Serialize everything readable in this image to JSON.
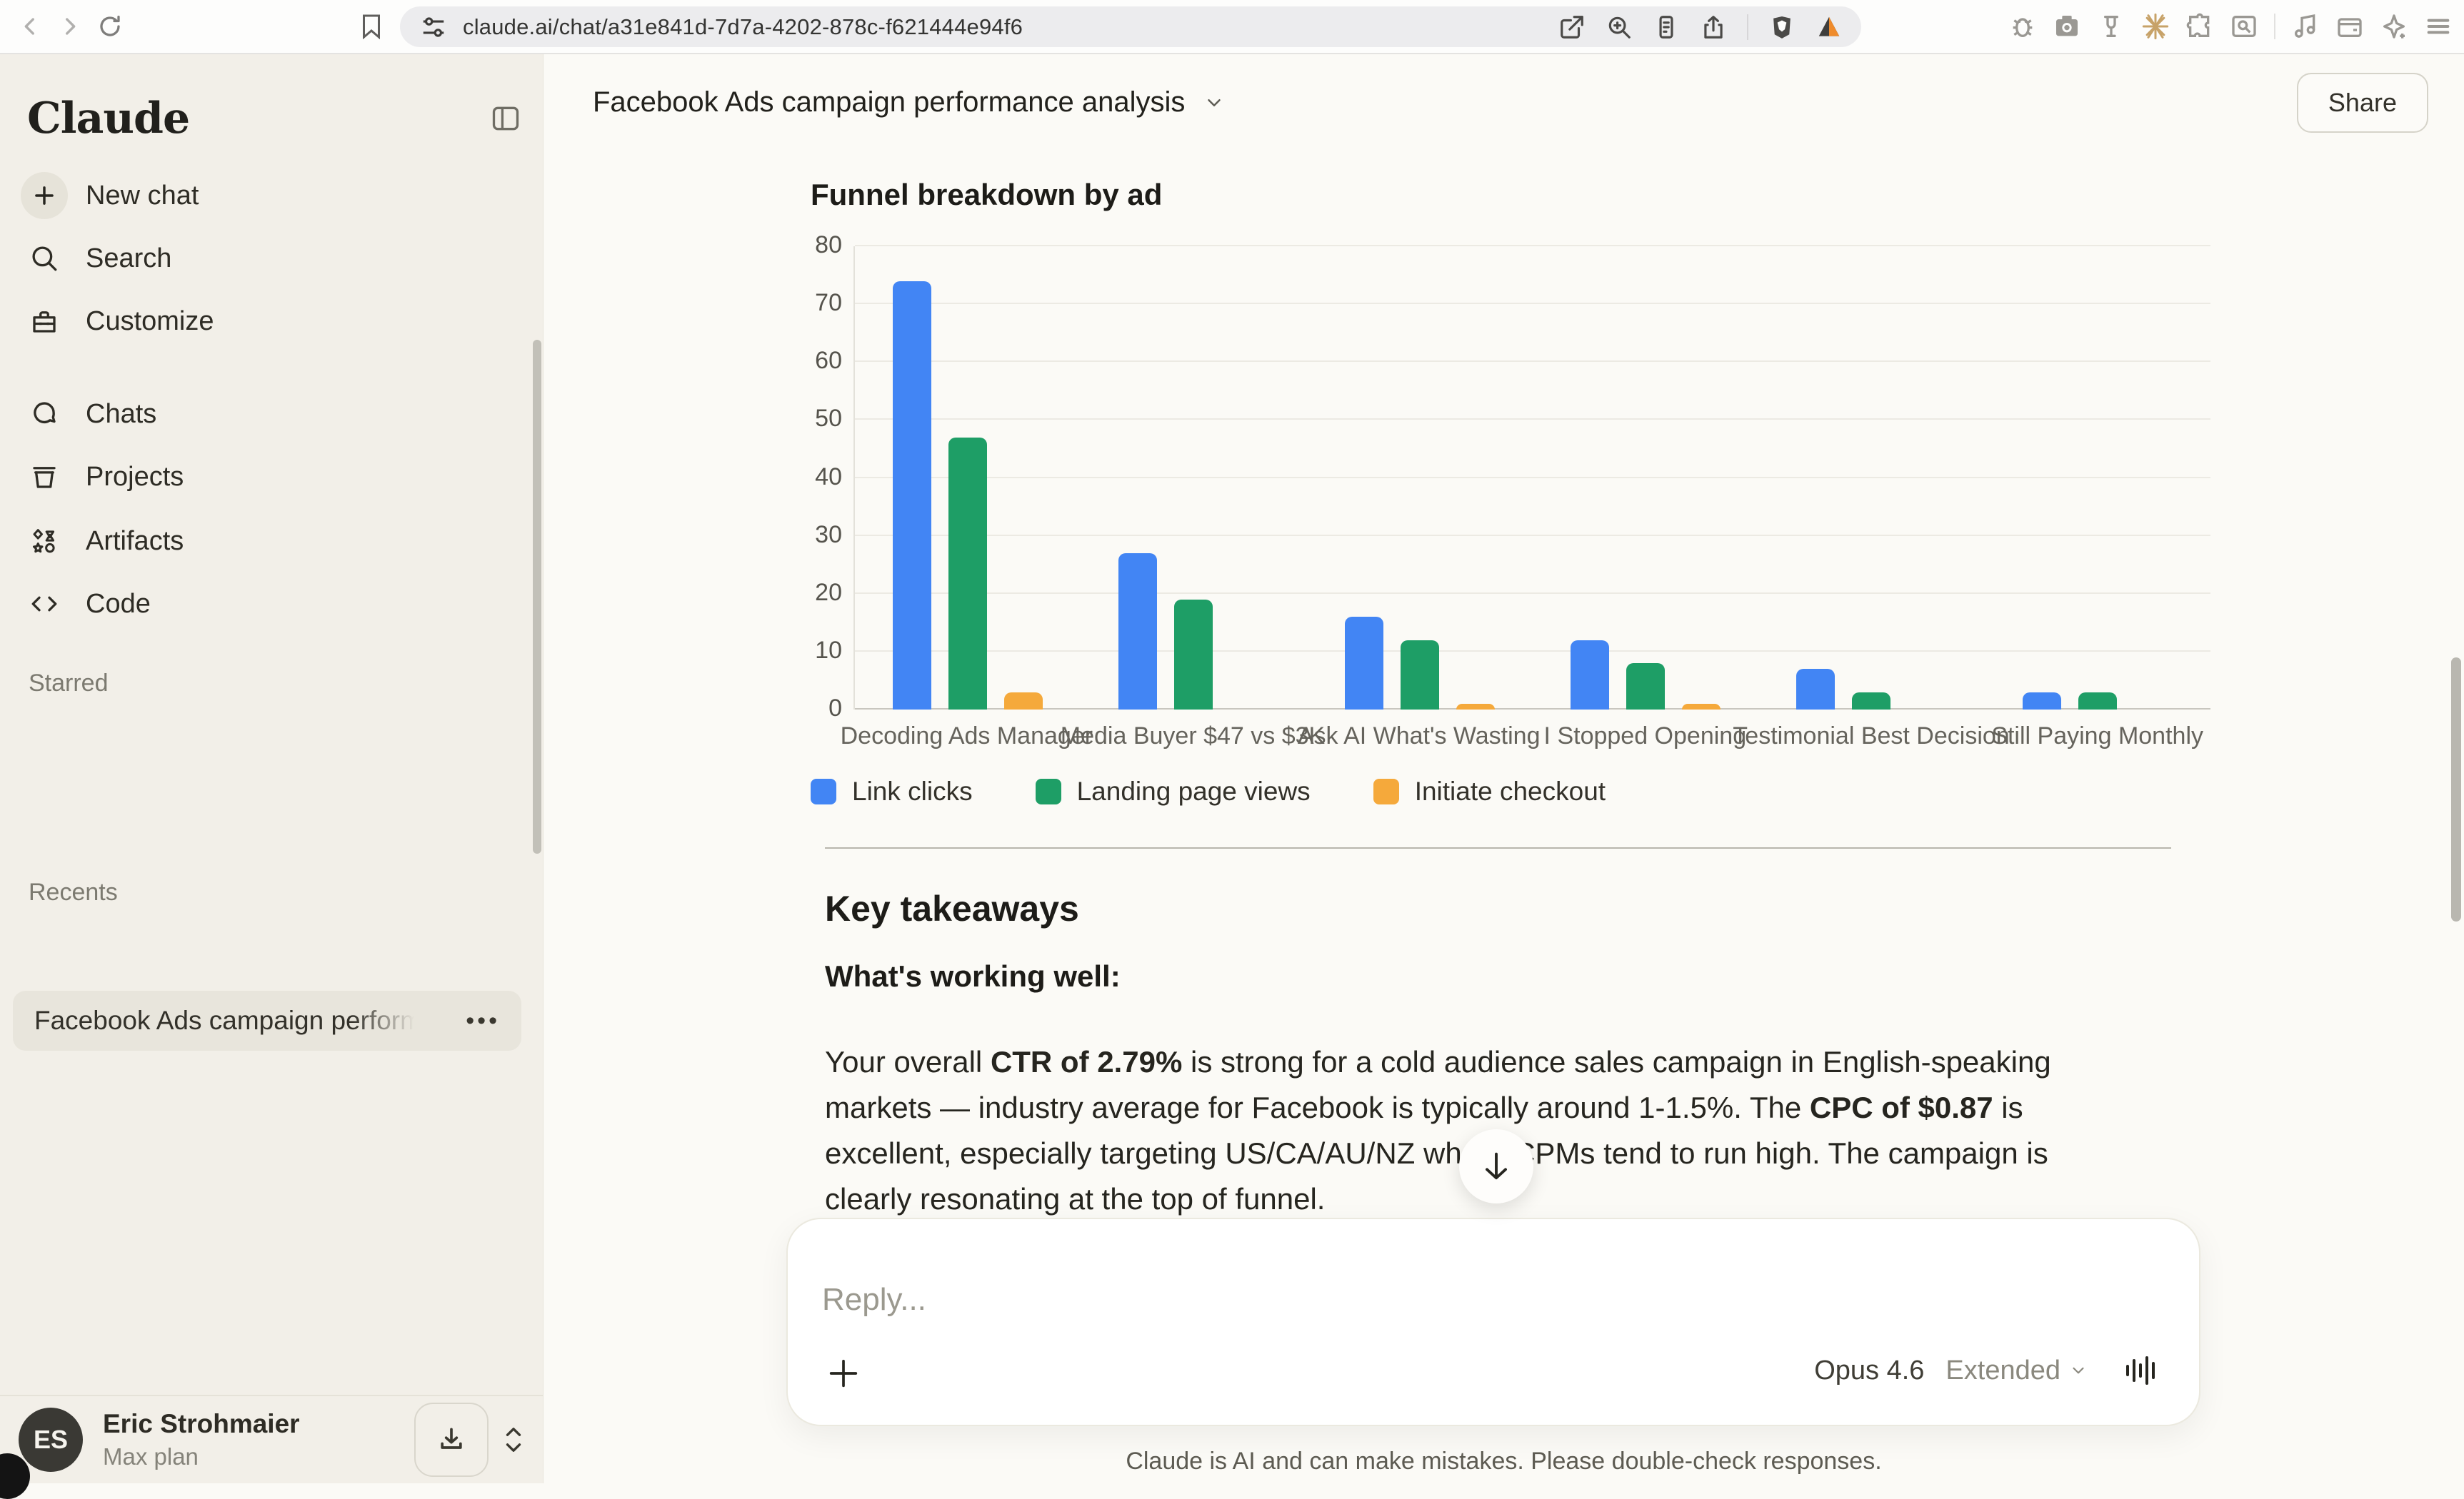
{
  "browser": {
    "url": "claude.ai/chat/a31e841d-7d7a-4202-878c-f621444e94f6",
    "nav_icons": [
      "back-arrow",
      "forward-arrow",
      "reload"
    ],
    "bookmark_icon": "bookmark-flag",
    "url_pill_icons": [
      "site-settings-sliders",
      "open-in-new",
      "zoom-in",
      "reader-mode",
      "share-upload",
      "brave-shield",
      "alert-triangle"
    ],
    "extension_icons": [
      "bug",
      "camera",
      "clamp",
      "burst",
      "puzzle",
      "screen-capture"
    ],
    "right_icons": [
      "music-note",
      "wallet",
      "sparkle",
      "menu"
    ]
  },
  "sidebar": {
    "logo": "Claude",
    "items": [
      {
        "label": "New chat",
        "icon": "plus-icon"
      },
      {
        "label": "Search",
        "icon": "search-icon"
      },
      {
        "label": "Customize",
        "icon": "toolbox-icon"
      },
      {
        "label": "Chats",
        "icon": "chat-bubble-icon"
      },
      {
        "label": "Projects",
        "icon": "box-icon"
      },
      {
        "label": "Artifacts",
        "icon": "shapes-icon"
      },
      {
        "label": "Code",
        "icon": "code-icon"
      }
    ],
    "sections": {
      "starred": "Starred",
      "recents": "Recents"
    },
    "recent_chat": {
      "label": "Facebook Ads campaign perform",
      "menu": "•••"
    },
    "user": {
      "initials": "ES",
      "name": "Eric Strohmaier",
      "plan": "Max plan"
    }
  },
  "header": {
    "title": "Facebook Ads campaign performance analysis",
    "share_label": "Share"
  },
  "chart_data": {
    "type": "bar",
    "title": "Funnel breakdown by ad",
    "categories": [
      "Decoding Ads Manager",
      "Media Buyer $47 vs $3K",
      "Ask AI What's Wasting",
      "I Stopped Opening",
      "Testimonial Best Decision",
      "Still Paying Monthly"
    ],
    "series": [
      {
        "name": "Link clicks",
        "color": "#4285F4",
        "values": [
          74,
          27,
          16,
          12,
          7,
          3
        ]
      },
      {
        "name": "Landing page views",
        "color": "#1E9E66",
        "values": [
          47,
          19,
          12,
          8,
          3,
          3
        ]
      },
      {
        "name": "Initiate checkout",
        "color": "#F5A93B",
        "values": [
          3,
          0,
          1,
          1,
          0,
          0
        ]
      }
    ],
    "xlabel": "",
    "ylabel": "",
    "ylim": [
      0,
      80
    ],
    "ytick_step": 10,
    "grid": true,
    "legend_position": "bottom"
  },
  "takeaways": {
    "heading": "Key takeaways",
    "subheading": "What's working well:",
    "paragraph": [
      {
        "text": "Your overall ",
        "bold": false
      },
      {
        "text": "CTR of 2.79%",
        "bold": true
      },
      {
        "text": " is strong for a cold audience sales campaign in English-speaking markets — industry average for Facebook is typically around 1-1.5%. The ",
        "bold": false
      },
      {
        "text": "CPC of $0.87",
        "bold": true
      },
      {
        "text": " is excellent, especially targeting US/CA/AU/NZ where CPMs tend to run high. The campaign is clearly resonating at the top of funnel.",
        "bold": false
      }
    ]
  },
  "composer": {
    "placeholder": "Reply...",
    "model": "Opus 4.6",
    "mode": "Extended"
  },
  "footer": {
    "disclaimer": "Claude is AI and can make mistakes. Please double-check responses."
  }
}
